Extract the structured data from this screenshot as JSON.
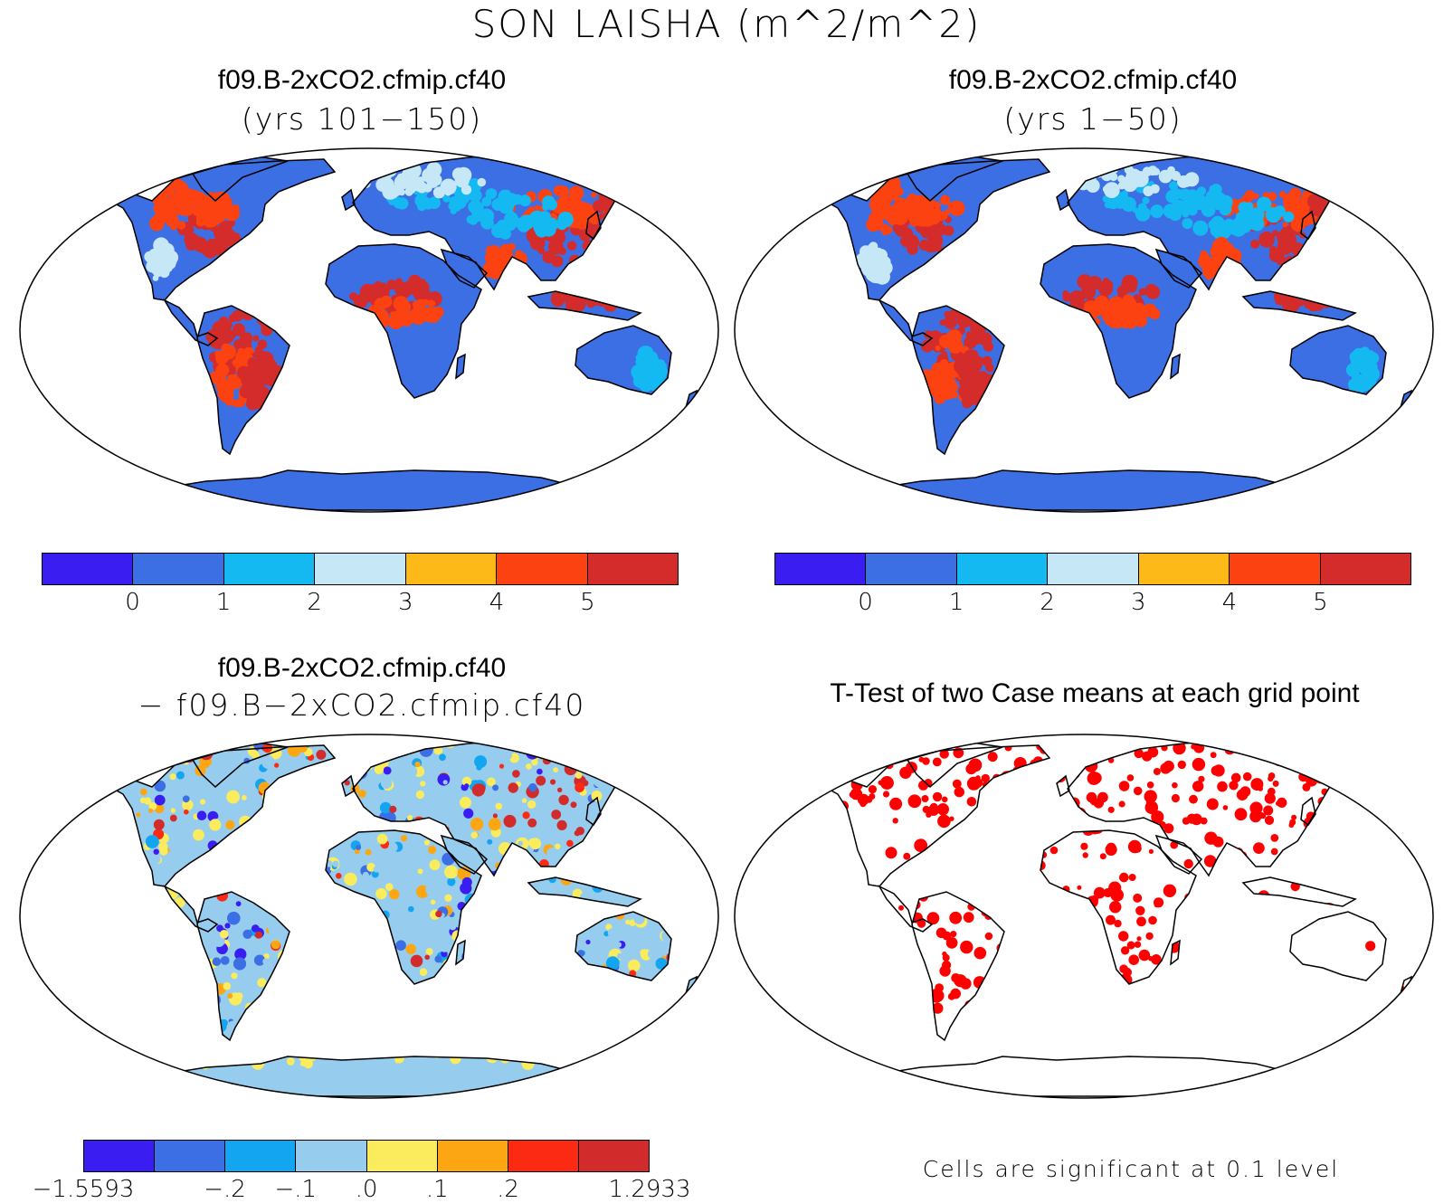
{
  "figure": {
    "title": "SON LAISHA (m^2/m^2)"
  },
  "panels": [
    {
      "title": "f09.B-2xCO2.cfmip.cf40",
      "subtitle": "(yrs 101−150)",
      "palette": "absolute"
    },
    {
      "title": "f09.B-2xCO2.cfmip.cf40",
      "subtitle": "(yrs 1−50)",
      "palette": "absolute"
    },
    {
      "title": "f09.B-2xCO2.cfmip.cf40",
      "subtitle": "− f09.B−2xCO2.cfmip.cf40",
      "palette": "difference"
    },
    {
      "title": "T-Test of two Case means at each grid point",
      "subtitle": "",
      "palette": "significance"
    }
  ],
  "colorbars": {
    "absolute": {
      "colors": [
        "#3a1df0",
        "#3c6fe3",
        "#14b9f2",
        "#c6e7f5",
        "#fcb917",
        "#fc4210",
        "#d42b2b"
      ],
      "tick_labels": [
        "0",
        "1",
        "2",
        "3",
        "4",
        "5"
      ]
    },
    "difference": {
      "colors": [
        "#3a1df0",
        "#3c6fe3",
        "#14a5f0",
        "#96cdee",
        "#fbec5d",
        "#fca613",
        "#fc2a12",
        "#d22b2b"
      ],
      "tick_labels": [
        "−1.5593",
        "−.2",
        "−.1",
        ".0",
        ".1",
        ".2",
        "1.2933"
      ]
    }
  },
  "significance": {
    "note": "Cells are significant at 0.1 level",
    "color": "#ff0000"
  }
}
